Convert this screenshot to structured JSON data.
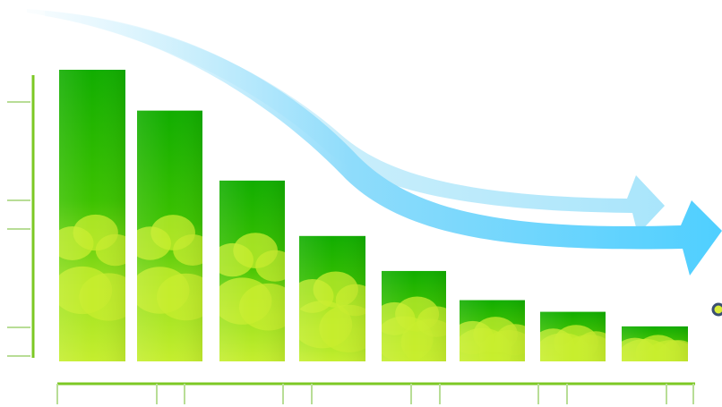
{
  "chart_data": {
    "type": "bar",
    "categories": [
      "",
      "",
      "",
      "",
      "",
      "",
      "",
      ""
    ],
    "values": [
      100,
      86,
      62,
      43,
      31,
      21,
      17,
      12
    ],
    "title": "",
    "xlabel": "",
    "ylabel": "",
    "ylim": [
      0,
      100
    ],
    "grid": false,
    "legend": "none",
    "colors": {
      "bar_dark": "#1fb800",
      "bar_light": "#b6ea2a",
      "bar_cloud": "#d4f230",
      "axis": "#7cc824",
      "arrow_light": "#bfe8f8",
      "arrow_bright": "#5fd3ff",
      "marker": "#3a4f73"
    },
    "decorations": {
      "trend_arrows": [
        "downward-curved-arrow-light",
        "downward-curved-arrow-bright"
      ]
    }
  }
}
